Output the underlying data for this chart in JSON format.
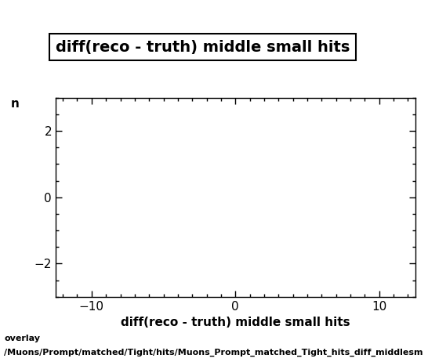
{
  "title": "diff(reco - truth) middle small hits",
  "xlabel": "diff(reco - truth) middle small hits",
  "ylabel": "n",
  "xlim": [
    -12.5,
    12.5
  ],
  "ylim": [
    -3,
    3
  ],
  "xticks": [
    -10,
    0,
    10
  ],
  "yticks": [
    -2,
    0,
    2
  ],
  "footer_line1": "overlay",
  "footer_line2": "/Muons/Prompt/matched/Tight/hits/Muons_Prompt_matched_Tight_hits_diff_middlesm",
  "background_color": "#ffffff",
  "plot_bg_color": "#ffffff",
  "title_fontsize": 14,
  "axis_label_fontsize": 11,
  "tick_fontsize": 11,
  "footer_fontsize": 8
}
